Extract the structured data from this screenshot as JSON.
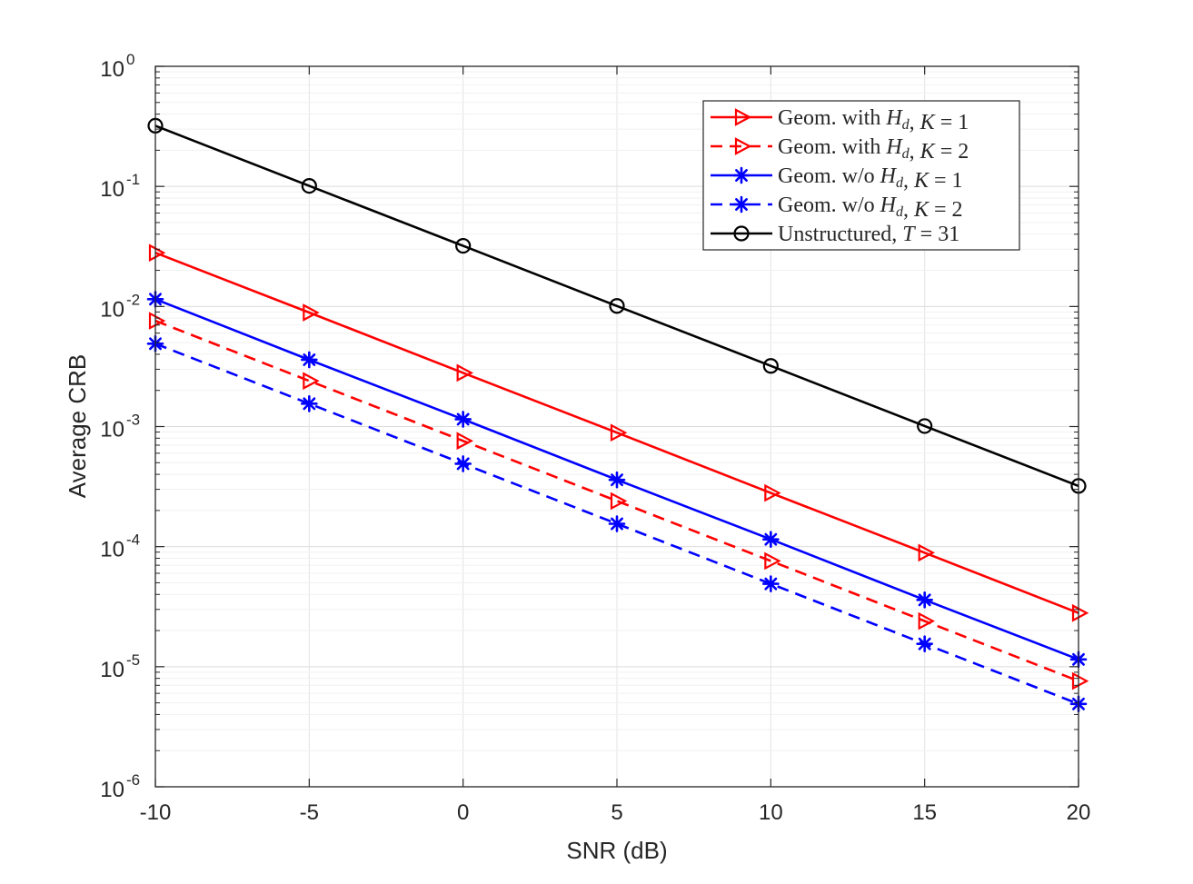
{
  "chart_data": {
    "type": "line",
    "title": "",
    "xlabel": "SNR (dB)",
    "ylabel": "Average CRB",
    "y_scale": "log",
    "xlim": [
      -10,
      20
    ],
    "ylim": [
      1e-06,
      1
    ],
    "grid": true,
    "legend_position": "top-right",
    "x_ticks": [
      {
        "value": -10,
        "label": "-10"
      },
      {
        "value": -5,
        "label": "-5"
      },
      {
        "value": 0,
        "label": "0"
      },
      {
        "value": 5,
        "label": "5"
      },
      {
        "value": 10,
        "label": "10"
      },
      {
        "value": 15,
        "label": "15"
      },
      {
        "value": 20,
        "label": "20"
      }
    ],
    "y_ticks": [
      {
        "value": 1,
        "base": "10",
        "exp": "0"
      },
      {
        "value": 0.1,
        "base": "10",
        "exp": "-1"
      },
      {
        "value": 0.01,
        "base": "10",
        "exp": "-2"
      },
      {
        "value": 0.001,
        "base": "10",
        "exp": "-3"
      },
      {
        "value": 0.0001,
        "base": "10",
        "exp": "-4"
      },
      {
        "value": 1e-05,
        "base": "10",
        "exp": "-5"
      },
      {
        "value": 1e-06,
        "base": "10",
        "exp": "-6"
      }
    ],
    "x": [
      -10,
      -5,
      0,
      5,
      10,
      15,
      20
    ],
    "series": [
      {
        "legend_parts": {
          "pre": "Geom. with ",
          "var": "H",
          "sub": "d",
          "mid": ", ",
          "var2": "K",
          "post": " = 1"
        },
        "color": "#ff0000",
        "dash": "solid",
        "marker": "triangle-right",
        "values": [
          0.028,
          0.0089,
          0.0028,
          0.00089,
          0.00028,
          8.9e-05,
          2.8e-05
        ]
      },
      {
        "legend_parts": {
          "pre": "Geom. with ",
          "var": "H",
          "sub": "d",
          "mid": ", ",
          "var2": "K",
          "post": " = 2"
        },
        "color": "#ff0000",
        "dash": "dashed",
        "marker": "triangle-right",
        "values": [
          0.0076,
          0.0024,
          0.00076,
          0.00024,
          7.6e-05,
          2.4e-05,
          7.6e-06
        ]
      },
      {
        "legend_parts": {
          "pre": "Geom. w/o ",
          "var": "H",
          "sub": "d",
          "mid": ", ",
          "var2": "K",
          "post": " = 1"
        },
        "color": "#0000ff",
        "dash": "solid",
        "marker": "asterisk",
        "values": [
          0.0115,
          0.0036,
          0.00115,
          0.00036,
          0.000115,
          3.6e-05,
          1.15e-05
        ]
      },
      {
        "legend_parts": {
          "pre": "Geom. w/o ",
          "var": "H",
          "sub": "d",
          "mid": ", ",
          "var2": "K",
          "post": " = 2"
        },
        "color": "#0000ff",
        "dash": "dashed",
        "marker": "asterisk",
        "values": [
          0.0049,
          0.00155,
          0.00049,
          0.000155,
          4.9e-05,
          1.55e-05,
          4.9e-06
        ]
      },
      {
        "legend_parts": {
          "pre": "Unstructured, ",
          "var": "T",
          "sub": "",
          "mid": "",
          "var2": "",
          "post": " = 31"
        },
        "color": "#000000",
        "dash": "solid",
        "marker": "circle",
        "values": [
          0.32,
          0.101,
          0.032,
          0.0101,
          0.0032,
          0.00101,
          0.00032
        ]
      }
    ]
  }
}
